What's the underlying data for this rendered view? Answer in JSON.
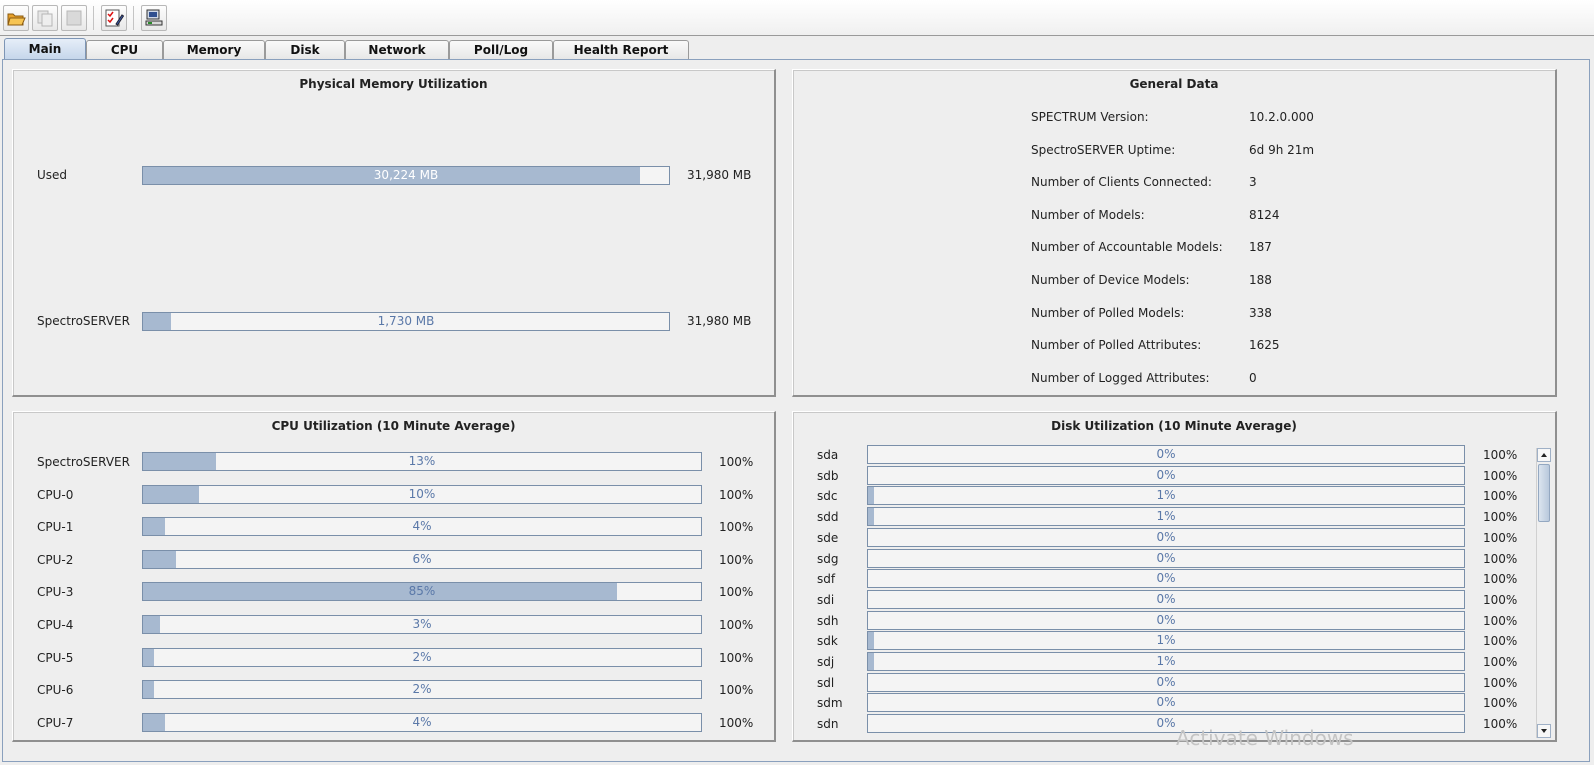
{
  "toolbar": {
    "buttons": [
      {
        "icon": "open-folder-icon"
      },
      {
        "icon": "copy-document-icon"
      },
      {
        "icon": "blank-document-icon"
      },
      {
        "icon": "checklist-edit-icon"
      },
      {
        "icon": "network-host-icon"
      }
    ]
  },
  "tabs": [
    "Main",
    "CPU",
    "Memory",
    "Disk",
    "Network",
    "Poll/Log",
    "Health Report"
  ],
  "active_tab": "Main",
  "memory": {
    "title": "Physical Memory Utilization",
    "rows": [
      {
        "label": "Used",
        "text": "30,224 MB",
        "fraction": 0.945,
        "max": "31,980 MB"
      },
      {
        "label": "SpectroSERVER",
        "text": "1,730 MB",
        "fraction": 0.054,
        "max": "31,980 MB"
      }
    ]
  },
  "general": {
    "title": "General Data",
    "rows": [
      {
        "label": "SPECTRUM Version:",
        "value": "10.2.0.000"
      },
      {
        "label": "SpectroSERVER Uptime:",
        "value": "6d 9h 21m"
      },
      {
        "label": "Number of Clients Connected:",
        "value": "3"
      },
      {
        "label": "Number of Models:",
        "value": "8124"
      },
      {
        "label": "Number of Accountable Models:",
        "value": "187"
      },
      {
        "label": "Number of Device Models:",
        "value": "188"
      },
      {
        "label": "Number of Polled Models:",
        "value": "338"
      },
      {
        "label": "Number of Polled Attributes:",
        "value": "1625"
      },
      {
        "label": "Number of Logged Attributes:",
        "value": "0"
      }
    ]
  },
  "cpu": {
    "title": "CPU Utilization (10 Minute Average)",
    "rows": [
      {
        "label": "SpectroSERVER",
        "percent": 13,
        "text": "13%",
        "max": "100%"
      },
      {
        "label": "CPU-0",
        "percent": 10,
        "text": "10%",
        "max": "100%"
      },
      {
        "label": "CPU-1",
        "percent": 4,
        "text": "4%",
        "max": "100%"
      },
      {
        "label": "CPU-2",
        "percent": 6,
        "text": "6%",
        "max": "100%"
      },
      {
        "label": "CPU-3",
        "percent": 85,
        "text": "85%",
        "max": "100%"
      },
      {
        "label": "CPU-4",
        "percent": 3,
        "text": "3%",
        "max": "100%"
      },
      {
        "label": "CPU-5",
        "percent": 2,
        "text": "2%",
        "max": "100%"
      },
      {
        "label": "CPU-6",
        "percent": 2,
        "text": "2%",
        "max": "100%"
      },
      {
        "label": "CPU-7",
        "percent": 4,
        "text": "4%",
        "max": "100%"
      }
    ]
  },
  "disk": {
    "title": "Disk Utilization (10 Minute Average)",
    "rows": [
      {
        "label": "sda",
        "percent": 0,
        "text": "0%",
        "max": "100%"
      },
      {
        "label": "sdb",
        "percent": 0,
        "text": "0%",
        "max": "100%"
      },
      {
        "label": "sdc",
        "percent": 1,
        "text": "1%",
        "max": "100%"
      },
      {
        "label": "sdd",
        "percent": 1,
        "text": "1%",
        "max": "100%"
      },
      {
        "label": "sde",
        "percent": 0,
        "text": "0%",
        "max": "100%"
      },
      {
        "label": "sdg",
        "percent": 0,
        "text": "0%",
        "max": "100%"
      },
      {
        "label": "sdf",
        "percent": 0,
        "text": "0%",
        "max": "100%"
      },
      {
        "label": "sdi",
        "percent": 0,
        "text": "0%",
        "max": "100%"
      },
      {
        "label": "sdh",
        "percent": 0,
        "text": "0%",
        "max": "100%"
      },
      {
        "label": "sdk",
        "percent": 1,
        "text": "1%",
        "max": "100%"
      },
      {
        "label": "sdj",
        "percent": 1,
        "text": "1%",
        "max": "100%"
      },
      {
        "label": "sdl",
        "percent": 0,
        "text": "0%",
        "max": "100%"
      },
      {
        "label": "sdm",
        "percent": 0,
        "text": "0%",
        "max": "100%"
      },
      {
        "label": "sdn",
        "percent": 0,
        "text": "0%",
        "max": "100%"
      }
    ]
  },
  "watermark": "Activate Windows",
  "colors": {
    "bar_fill": "#a7b9d0",
    "bar_border": "#7a8fa9",
    "bar_text": "#5a78a8",
    "active_tab": "#c4d5ea"
  }
}
